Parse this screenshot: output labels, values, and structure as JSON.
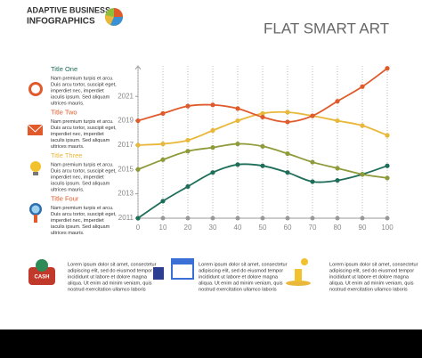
{
  "header": {
    "brand": [
      "ADAPTIVE BUSINESS",
      "INFOGRAPHICS"
    ],
    "title": "FLAT SMART ART"
  },
  "sidebar": [
    {
      "title": "Title One",
      "text": [
        "Nam premium turpis et arcu.",
        "Duis arcu tortor, suscipit eget,",
        "imperdiet nec, imperdiet",
        "iaculis ipsum. Sed aliquam",
        "ultrices mauris."
      ]
    },
    {
      "title": "Title Two",
      "text": [
        "Nam premium turpis et arcu.",
        "Duis arcu tortor, suscipit eget,",
        "imperdiet nec, imperdiet",
        "iaculis ipsum. Sed aliquam",
        "ultrices mauris."
      ]
    },
    {
      "title": "Title Three",
      "text": [
        "Nam premium turpis et arcu.",
        "Duis arcu tortor, suscipit eget,",
        "imperdiet nec, imperdiet",
        "iaculis ipsum. Sed aliquam",
        "ultrices mauris."
      ]
    },
    {
      "title": "Title Four",
      "text": [
        "Nam premium turpis et arcu.",
        "Duis arcu tortor, suscipit eget,",
        "imperdiet nec, imperdiet",
        "iaculis ipsum. Sed aliquam",
        "ultrices mauris."
      ]
    }
  ],
  "footer": {
    "cash_label": "CASH",
    "items": [
      [
        "Lorem ipsum dolor sit amet, consectetur",
        "adipiscing elit, sed do eiusmod tempor",
        "incididunt ut labore et dolore magna",
        "aliqua. Ut enim ad minim veniam, quis",
        "nostrud exercitation ullamco laboris"
      ],
      [
        "Lorem ipsum dolor sit amet, consectetur",
        "adipiscing elit, sed do eiusmod tempor",
        "incididunt ut labore et dolore magna",
        "aliqua. Ut enim ad minim veniam, quis",
        "nostrud exercitation ullamco laboris"
      ],
      [
        "Lorem ipsum dolor sit amet, consectetur",
        "adipiscing elit, sed do eiusmod tempor",
        "incididunt ut labore et dolore magna",
        "aliqua. Ut enim ad minim veniam, quis",
        "nostrud exercitation ullamco laboris"
      ]
    ]
  },
  "chart_data": {
    "type": "line",
    "x": [
      0,
      10,
      20,
      30,
      40,
      50,
      60,
      70,
      80,
      90,
      100
    ],
    "xlim": [
      0,
      100
    ],
    "xticks": [
      0,
      10,
      20,
      30,
      40,
      50,
      60,
      70,
      80,
      90,
      100
    ],
    "ylim": [
      2011,
      2023.5
    ],
    "yticks": [
      2011,
      2013,
      2015,
      2017,
      2019,
      2021
    ],
    "grid": true,
    "series": [
      {
        "color": "#1f6e5a",
        "values": [
          2011,
          2012.4,
          2013.6,
          2014.75,
          2015.4,
          2015.3,
          2014.75,
          2014.0,
          2014.1,
          2014.6,
          2015.3
        ]
      },
      {
        "color": "#8f9a3a",
        "values": [
          2015,
          2015.8,
          2016.5,
          2016.8,
          2017.1,
          2016.9,
          2016.3,
          2015.6,
          2015.1,
          2014.6,
          2014.3
        ]
      },
      {
        "color": "#e9b73a",
        "values": [
          2017,
          2017.1,
          2017.4,
          2018.2,
          2019.0,
          2019.6,
          2019.7,
          2019.4,
          2019.0,
          2018.6,
          2017.8
        ]
      },
      {
        "color": "#e05a2c",
        "values": [
          2019,
          2019.6,
          2020.2,
          2020.3,
          2020.0,
          2019.3,
          2018.9,
          2019.4,
          2020.6,
          2021.8,
          2023.3
        ]
      }
    ]
  }
}
